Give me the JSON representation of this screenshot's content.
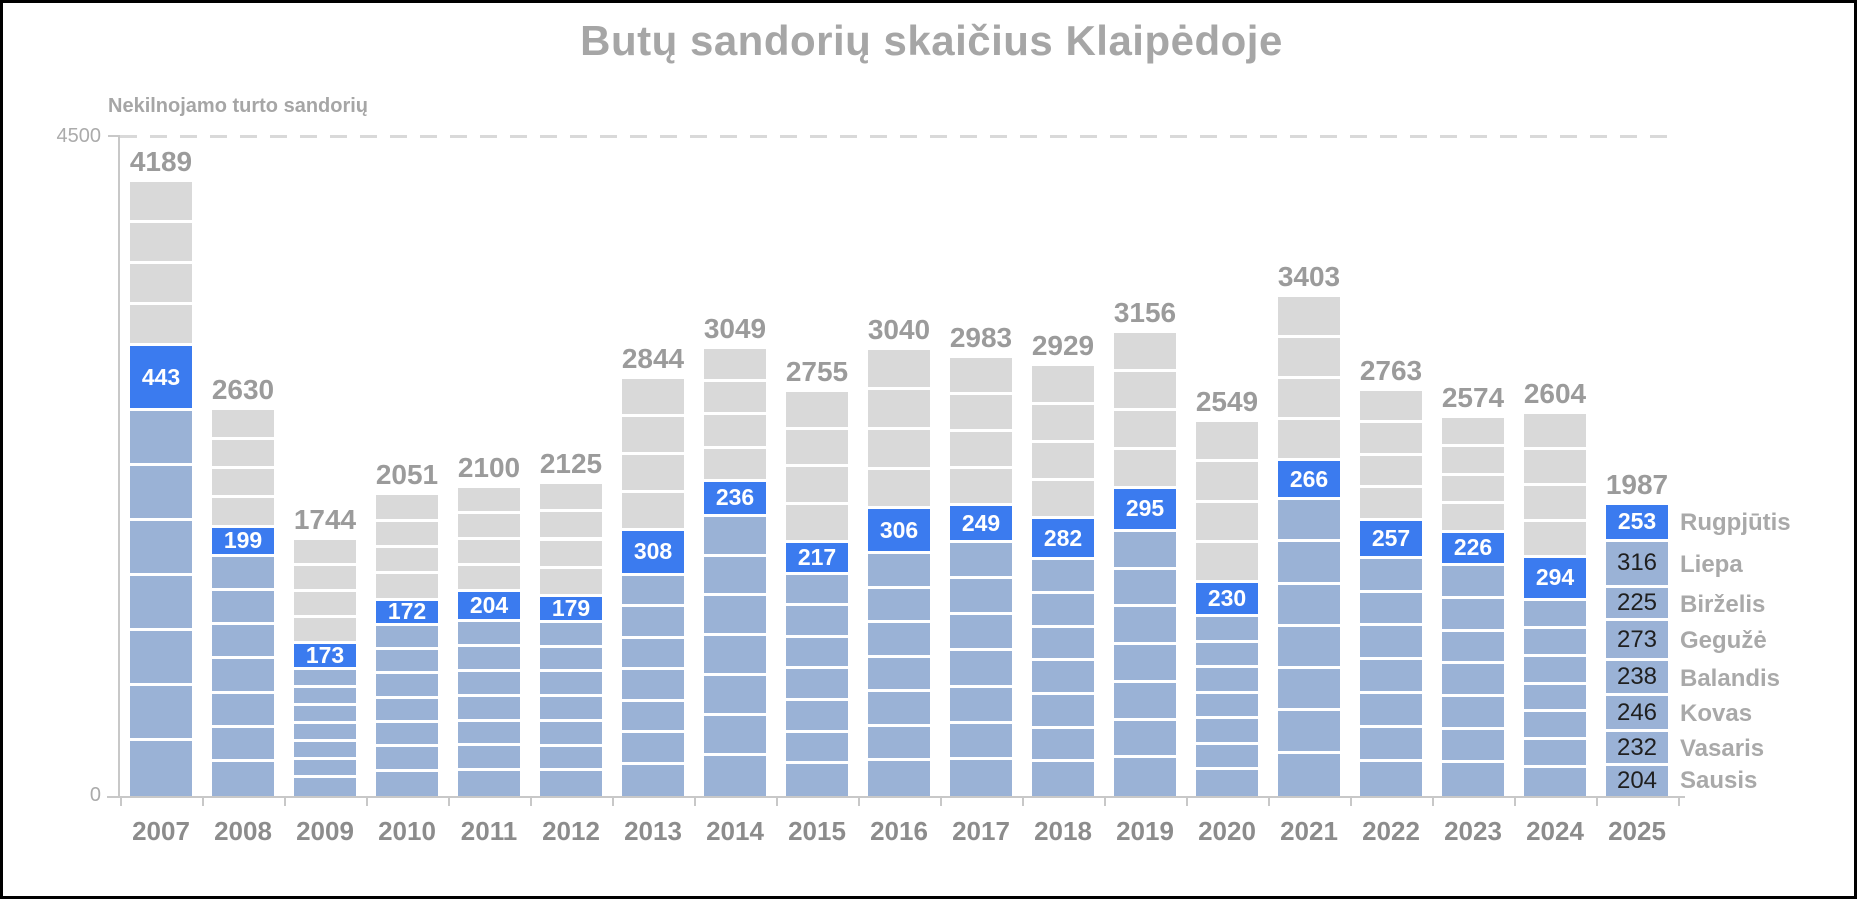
{
  "chart_data": {
    "type": "bar",
    "variant": "stacked-monthly",
    "title": "Butų sandorių skaičius Klaipėdoje",
    "axis_title": "Nekilnojamo turto sandorių",
    "ylim": [
      0,
      4500
    ],
    "y_ticks": [
      "4500",
      "0"
    ],
    "grid": "single dashed horizontal line at y=4500",
    "legend_position": "right of last bar, month names top-to-bottom",
    "highlighted_month": "Rugpjūtis",
    "bars": [
      {
        "year": "2007",
        "total": 4189,
        "august": 443,
        "jan_jul_est": 2625,
        "sep_dec_est": 1121
      },
      {
        "year": "2008",
        "total": 2630,
        "august": 199,
        "jan_jul_est": 1630,
        "sep_dec_est": 801
      },
      {
        "year": "2009",
        "total": 1744,
        "august": 173,
        "jan_jul_est": 860,
        "sep_dec_est": 711
      },
      {
        "year": "2010",
        "total": 2051,
        "august": 172,
        "jan_jul_est": 1160,
        "sep_dec_est": 719
      },
      {
        "year": "2011",
        "total": 2100,
        "august": 204,
        "jan_jul_est": 1185,
        "sep_dec_est": 711
      },
      {
        "year": "2012",
        "total": 2125,
        "august": 179,
        "jan_jul_est": 1180,
        "sep_dec_est": 766
      },
      {
        "year": "2013",
        "total": 2844,
        "august": 308,
        "jan_jul_est": 1500,
        "sep_dec_est": 1036
      },
      {
        "year": "2014",
        "total": 3049,
        "august": 236,
        "jan_jul_est": 1905,
        "sep_dec_est": 908
      },
      {
        "year": "2015",
        "total": 2755,
        "august": 217,
        "jan_jul_est": 1510,
        "sep_dec_est": 1028
      },
      {
        "year": "2016",
        "total": 3040,
        "august": 306,
        "jan_jul_est": 1648,
        "sep_dec_est": 1086
      },
      {
        "year": "2017",
        "total": 2983,
        "august": 249,
        "jan_jul_est": 1725,
        "sep_dec_est": 1009
      },
      {
        "year": "2018",
        "total": 2929,
        "august": 282,
        "jan_jul_est": 1607,
        "sep_dec_est": 1040
      },
      {
        "year": "2019",
        "total": 3156,
        "august": 295,
        "jan_jul_est": 1800,
        "sep_dec_est": 1061
      },
      {
        "year": "2020",
        "total": 2549,
        "august": 230,
        "jan_jul_est": 1220,
        "sep_dec_est": 1099
      },
      {
        "year": "2021",
        "total": 3403,
        "august": 266,
        "jan_jul_est": 2018,
        "sep_dec_est": 1119
      },
      {
        "year": "2022",
        "total": 2763,
        "august": 257,
        "jan_jul_est": 1618,
        "sep_dec_est": 888
      },
      {
        "year": "2023",
        "total": 2574,
        "august": 226,
        "jan_jul_est": 1570,
        "sep_dec_est": 778
      },
      {
        "year": "2024",
        "total": 2604,
        "august": 294,
        "jan_jul_est": 1330,
        "sep_dec_est": 980
      },
      {
        "year": "2025",
        "total": 1987,
        "august": 253,
        "months": [
          {
            "label": "Sausis",
            "value": 204
          },
          {
            "label": "Vasaris",
            "value": 232
          },
          {
            "label": "Kovas",
            "value": 246
          },
          {
            "label": "Balandis",
            "value": 238
          },
          {
            "label": "Gegužė",
            "value": 273
          },
          {
            "label": "Birželis",
            "value": 225
          },
          {
            "label": "Liepa",
            "value": 316
          },
          {
            "label": "Rugpjūtis",
            "value": 253
          }
        ]
      }
    ],
    "colors": {
      "highlight_blue": "#3b7bef",
      "month_blue": "#9ab2d6",
      "remaining_gray": "#d9d9d9",
      "title_gray": "#a6a6a6",
      "total_label_gray": "#9b9b9b",
      "year_label_gray": "#8c8c8c",
      "tick_label_gray": "#ababab",
      "axis_line_gray": "#c8c8c8",
      "legend_label_gray": "#a9a9a9",
      "value_text_dark": "#1f1f1f",
      "value_text_light": "#ffffff"
    }
  }
}
